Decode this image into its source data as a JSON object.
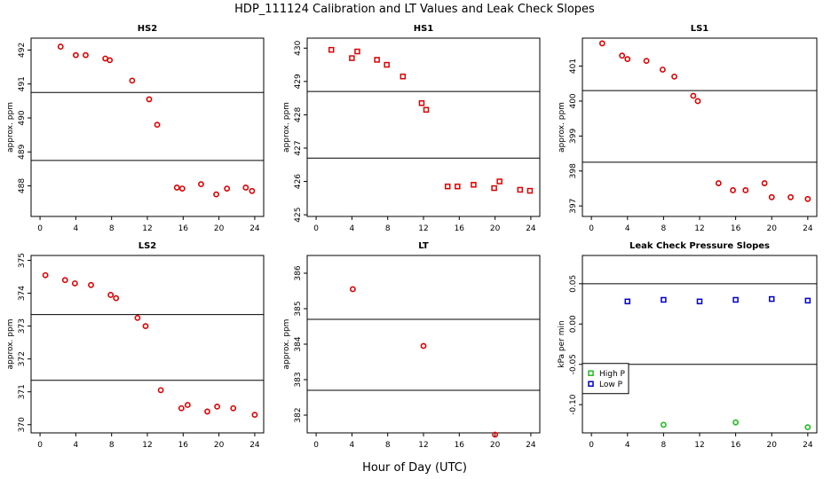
{
  "figure": {
    "title": "HDP_111124  Calibration and LT Values and Leak Check Slopes",
    "xlabel": "Hour of Day (UTC)"
  },
  "colors": {
    "red": "#dd0000",
    "green": "#22bb22",
    "blue": "#0000cc",
    "line": "#000000"
  },
  "chart_data": [
    {
      "type": "scatter",
      "title": "HS2",
      "ylabel": "approx. ppm",
      "xlim": [
        -1,
        25
      ],
      "ylim": [
        487.1,
        492.35
      ],
      "xticks": [
        0,
        4,
        8,
        12,
        16,
        20,
        24
      ],
      "yticks": [
        488,
        489,
        490,
        491,
        492
      ],
      "hlines": [
        490.75,
        488.75
      ],
      "series": [
        {
          "color": "red",
          "marker": "circle",
          "x": [
            2.3,
            4.0,
            5.1,
            7.3,
            7.8,
            10.3,
            12.2,
            13.1,
            15.3,
            15.9,
            18.0,
            19.7,
            20.9,
            23.0,
            23.7
          ],
          "y": [
            492.1,
            491.85,
            491.85,
            491.75,
            491.7,
            491.1,
            490.55,
            489.8,
            487.95,
            487.92,
            488.05,
            487.75,
            487.92,
            487.95,
            487.85
          ]
        }
      ]
    },
    {
      "type": "scatter",
      "title": "HS1",
      "ylabel": "approx. ppm",
      "xlim": [
        -1,
        25
      ],
      "ylim": [
        424.95,
        430.3
      ],
      "xticks": [
        0,
        4,
        8,
        12,
        16,
        20,
        24
      ],
      "yticks": [
        425,
        426,
        427,
        428,
        429,
        430
      ],
      "hlines": [
        428.7,
        426.7
      ],
      "series": [
        {
          "color": "red",
          "marker": "square",
          "x": [
            1.7,
            4.0,
            4.6,
            6.8,
            7.9,
            9.7,
            11.8,
            12.3,
            14.7,
            15.8,
            17.6,
            19.9,
            20.5,
            22.8,
            23.9
          ],
          "y": [
            429.95,
            429.7,
            429.9,
            429.65,
            429.5,
            429.15,
            428.35,
            428.15,
            425.85,
            425.85,
            425.9,
            425.8,
            426.0,
            425.75,
            425.72
          ]
        }
      ]
    },
    {
      "type": "scatter",
      "title": "LS1",
      "ylabel": "approx. ppm",
      "xlim": [
        -1,
        25
      ],
      "ylim": [
        396.7,
        401.8
      ],
      "xticks": [
        0,
        4,
        8,
        12,
        16,
        20,
        24
      ],
      "yticks": [
        397,
        398,
        399,
        400,
        401
      ],
      "hlines": [
        400.3,
        398.25
      ],
      "series": [
        {
          "color": "red",
          "marker": "circle",
          "x": [
            1.2,
            3.4,
            4.0,
            6.1,
            7.9,
            9.2,
            11.3,
            11.8,
            14.1,
            15.7,
            17.1,
            19.2,
            20.0,
            22.1,
            24.0
          ],
          "y": [
            401.65,
            401.3,
            401.2,
            401.15,
            400.9,
            400.7,
            400.15,
            400.0,
            397.65,
            397.45,
            397.45,
            397.65,
            397.25,
            397.25,
            397.2
          ]
        }
      ]
    },
    {
      "type": "scatter",
      "title": "LS2",
      "ylabel": "approx. ppm",
      "xlim": [
        -1,
        25
      ],
      "ylim": [
        369.75,
        375.15
      ],
      "xticks": [
        0,
        4,
        8,
        12,
        16,
        20,
        24
      ],
      "yticks": [
        370,
        371,
        372,
        373,
        374,
        375
      ],
      "hlines": [
        373.35,
        371.35
      ],
      "series": [
        {
          "color": "red",
          "marker": "circle",
          "x": [
            0.6,
            2.8,
            3.9,
            5.7,
            7.9,
            8.5,
            10.9,
            11.8,
            13.5,
            15.8,
            16.5,
            18.7,
            19.8,
            21.6,
            24.0
          ],
          "y": [
            374.55,
            374.4,
            374.3,
            374.25,
            373.95,
            373.85,
            373.25,
            373.0,
            371.05,
            370.5,
            370.6,
            370.4,
            370.55,
            370.5,
            370.3
          ]
        }
      ]
    },
    {
      "type": "scatter",
      "title": "LT",
      "ylabel": "approx. ppm",
      "xlim": [
        -1,
        25
      ],
      "ylim": [
        381.5,
        386.5
      ],
      "xticks": [
        0,
        4,
        8,
        12,
        16,
        20,
        24
      ],
      "yticks": [
        382,
        383,
        384,
        385,
        386
      ],
      "hlines": [
        384.7,
        382.7
      ],
      "series": [
        {
          "color": "red",
          "marker": "circle",
          "x": [
            4.1,
            12.0,
            20.0
          ],
          "y": [
            385.55,
            383.95,
            381.45
          ]
        }
      ]
    },
    {
      "type": "scatter",
      "title": "Leak Check Pressure Slopes",
      "ylabel": "kPa per min",
      "xlim": [
        -1,
        25
      ],
      "ylim": [
        -0.135,
        0.085
      ],
      "xticks": [
        0,
        4,
        8,
        12,
        16,
        20,
        24
      ],
      "yticks": [
        -0.1,
        -0.05,
        0.0,
        0.05
      ],
      "ytick_labels": [
        "-0.10",
        "-0.05",
        "0.00",
        "0.05"
      ],
      "hlines": [
        0.05,
        -0.05
      ],
      "series": [
        {
          "name": "High P",
          "color": "green",
          "marker": "circle",
          "x": [
            8.0,
            16.0,
            24.0
          ],
          "y": [
            -0.125,
            -0.122,
            -0.128
          ]
        },
        {
          "name": "Low P",
          "color": "blue",
          "marker": "square",
          "x": [
            4.0,
            8.0,
            12.0,
            16.0,
            20.0,
            24.0
          ],
          "y": [
            0.028,
            0.03,
            0.028,
            0.03,
            0.031,
            0.029
          ]
        }
      ],
      "legend": {
        "placement": "bottom-left"
      }
    }
  ]
}
